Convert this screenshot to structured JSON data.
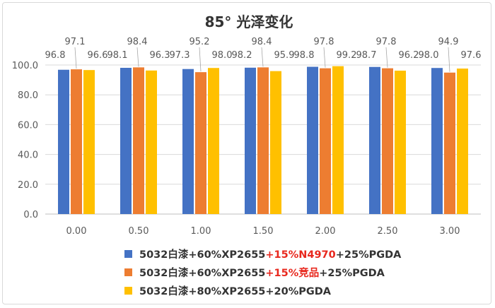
{
  "chart_data": {
    "type": "bar",
    "title": "85°  光泽变化",
    "categories": [
      "0.00",
      "0.50",
      "1.00",
      "1.50",
      "2.00",
      "2.50",
      "3.00"
    ],
    "series": [
      {
        "name": "5032白漆+60%XP2655+15%N4970+25%PGDA",
        "name_parts": [
          "5032白漆+60%XP2655",
          "+15%N4970",
          "+25%PGDA"
        ],
        "color": "#4472c4",
        "values": [
          96.8,
          98.1,
          97.3,
          98.2,
          98.8,
          98.7,
          98.0
        ]
      },
      {
        "name": "5032白漆+60%XP2655+15%竞品+25%PGDA",
        "name_parts": [
          "5032白漆+60%XP2655",
          "+15%竞品",
          "+25%PGDA"
        ],
        "color": "#ed7d31",
        "values": [
          97.1,
          98.4,
          95.2,
          98.4,
          97.8,
          97.8,
          94.9
        ]
      },
      {
        "name": "5032白漆+80%XP2655+20%PGDA",
        "color": "#ffc000",
        "values": [
          96.6,
          96.3,
          98.0,
          95.9,
          99.2,
          96.2,
          97.6
        ]
      }
    ],
    "yticks": [
      "0.0",
      "20.0",
      "40.0",
      "60.0",
      "80.0",
      "100.0"
    ],
    "ylim": [
      0,
      100
    ],
    "xlabel": "",
    "ylabel": "",
    "grid": true,
    "legend_position": "bottom",
    "highlight_color": "#e8281e"
  }
}
